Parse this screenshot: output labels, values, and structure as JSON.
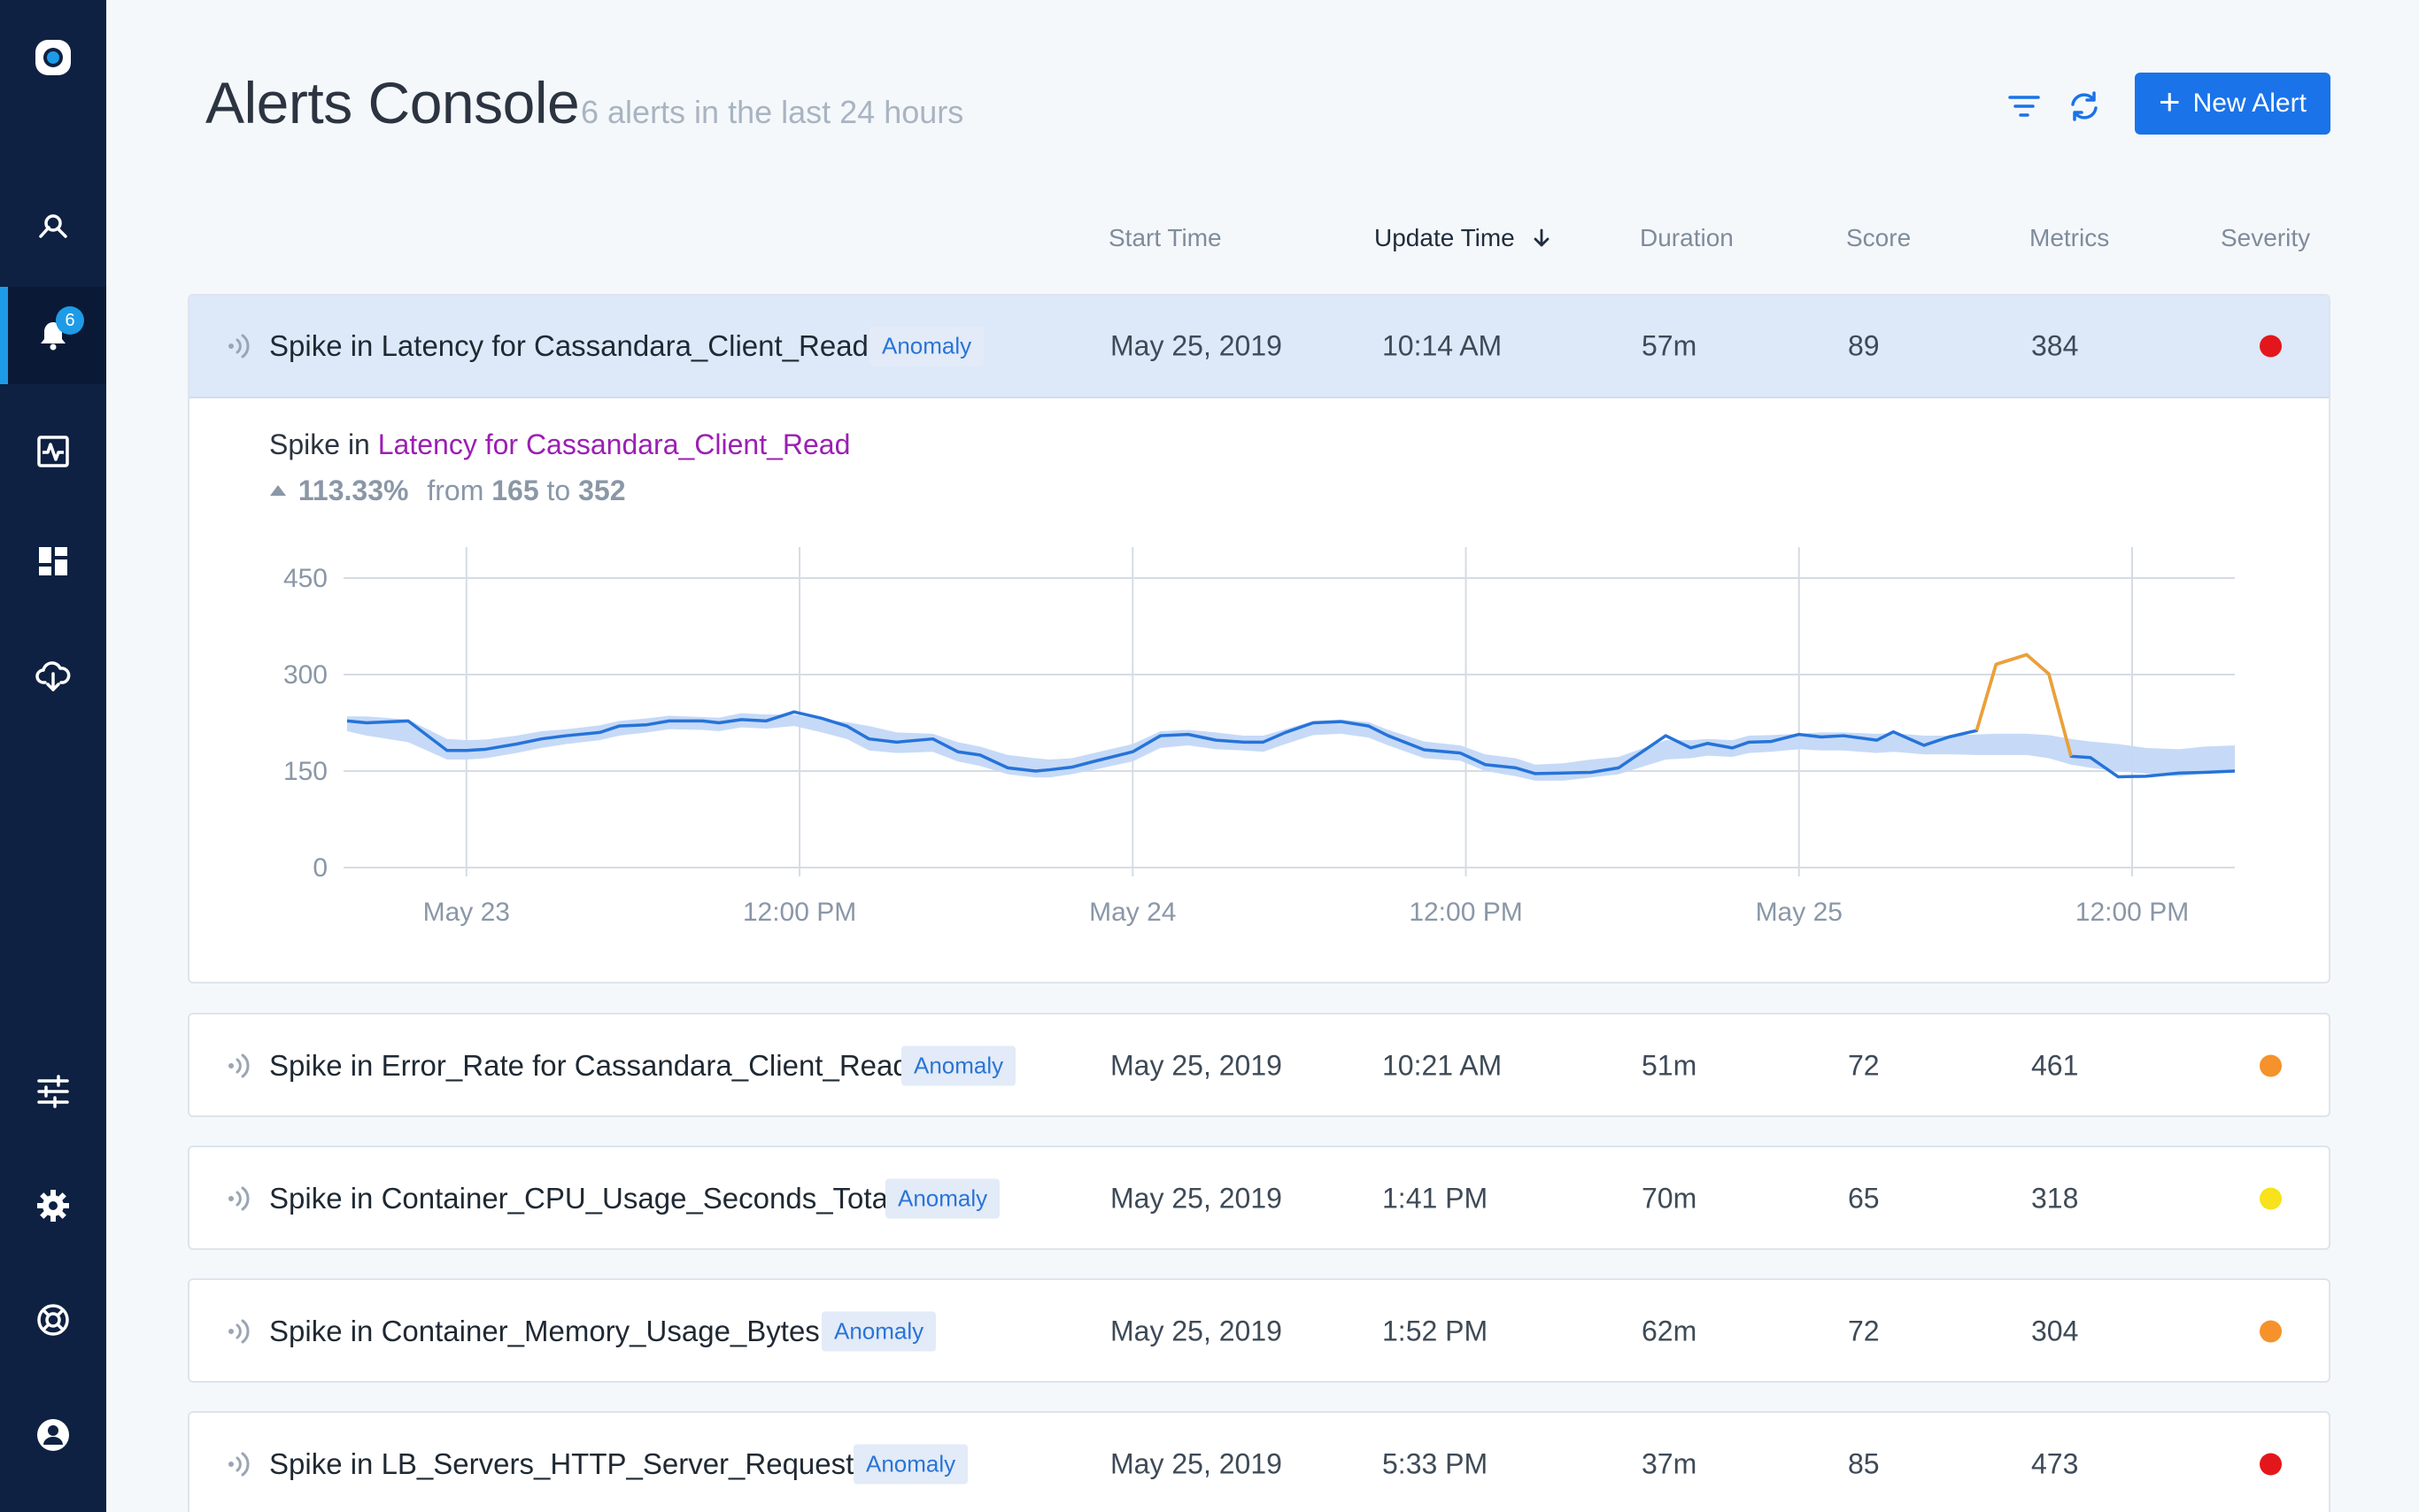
{
  "header": {
    "title": "Alerts Console",
    "subtitle": "6 alerts in the last 24 hours",
    "new_alert_label": "New Alert"
  },
  "sidebar": {
    "notification_count": "6",
    "items": [
      "logo-icon",
      "explore-icon",
      "alerts-bell-icon",
      "activity-icon",
      "dashboard-icon",
      "cloud-download-icon",
      "sliders-icon",
      "gear-icon",
      "support-icon",
      "user-icon"
    ]
  },
  "columns": {
    "start_time": "Start Time",
    "update_time": "Update Time",
    "duration": "Duration",
    "score": "Score",
    "metrics": "Metrics",
    "severity": "Severity"
  },
  "colors": {
    "accent": "#1a73e8",
    "red": "#e3171b",
    "orange": "#f5922b",
    "yellow": "#f7e21b"
  },
  "alerts": [
    {
      "title": "Spike in Latency for Cassandara_Client_Read",
      "tag": "Anomaly",
      "start": "May 25, 2019",
      "update": "10:14 AM",
      "duration": "57m",
      "score": "89",
      "metrics": "384",
      "severity": "#e3171b"
    },
    {
      "title": "Spike in Error_Rate for Cassandara_Client_Read",
      "tag": "Anomaly",
      "start": "May 25, 2019",
      "update": "10:21 AM",
      "duration": "51m",
      "score": "72",
      "metrics": "461",
      "severity": "#f5922b"
    },
    {
      "title": "Spike in Container_CPU_Usage_Seconds_Total",
      "tag": "Anomaly",
      "start": "May 25, 2019",
      "update": "1:41 PM",
      "duration": "70m",
      "score": "65",
      "metrics": "318",
      "severity": "#f7e21b"
    },
    {
      "title": "Spike in Container_Memory_Usage_Bytes",
      "tag": "Anomaly",
      "start": "May 25, 2019",
      "update": "1:52 PM",
      "duration": "62m",
      "score": "72",
      "metrics": "304",
      "severity": "#f5922b"
    },
    {
      "title": "Spike in LB_Servers_HTTP_Server_Requests",
      "tag": "Anomaly",
      "start": "May 25, 2019",
      "update": "5:33 PM",
      "duration": "37m",
      "score": "85",
      "metrics": "473",
      "severity": "#e3171b"
    }
  ],
  "detail": {
    "prefix": "Spike in",
    "metric": "Latency for Cassandara_Client_Read",
    "pct": "113.33%",
    "from_word": "from",
    "from_val": "165",
    "to_word": "to",
    "to_val": "352"
  },
  "chart_data": {
    "type": "line",
    "yticks": [
      "0",
      "150",
      "300",
      "450"
    ],
    "ylim": [
      0,
      490
    ],
    "xticks": [
      "May 23",
      "12:00 PM",
      "May 24",
      "12:00 PM",
      "May 25",
      "12:00 PM"
    ],
    "x_tick_hours": [
      0,
      12,
      24,
      36,
      48,
      60
    ],
    "xlim_hours": [
      -4.3,
      63.7
    ],
    "series": [
      {
        "role": "actual",
        "color": "#2673d9",
        "x_hours": [
          -4.3,
          -3.6,
          -2.1,
          -0.7,
          0.0,
          0.7,
          1.8,
          2.7,
          3.6,
          4.8,
          5.5,
          6.5,
          7.3,
          8.5,
          9.1,
          9.9,
          10.8,
          11.8,
          12.8,
          13.7,
          14.5,
          15.5,
          16.8,
          17.7,
          18.5,
          19.5,
          20.5,
          21.0,
          21.8,
          22.6,
          24.0,
          25.0,
          26.0,
          27.0,
          28.0,
          28.7,
          29.5,
          30.5,
          31.5,
          32.5,
          33.2,
          34.5,
          35.8,
          36.7,
          37.8,
          38.5,
          39.5,
          40.5,
          41.5,
          43.2,
          44.1,
          44.7,
          45.6,
          46.2,
          47.0,
          48.0,
          48.8,
          49.6,
          50.8,
          51.4,
          52.5,
          53.4,
          54.4,
          55.1,
          56.2,
          57.0,
          57.8,
          58.5,
          59.5,
          60.5,
          61.7,
          62.6,
          63.7
        ],
        "y": [
          228,
          225,
          228,
          182,
          182,
          184,
          192,
          200,
          205,
          210,
          220,
          222,
          228,
          228,
          225,
          230,
          228,
          242,
          232,
          220,
          200,
          195,
          200,
          180,
          175,
          155,
          150,
          152,
          156,
          165,
          180,
          205,
          207,
          198,
          195,
          195,
          210,
          225,
          227,
          220,
          205,
          183,
          178,
          160,
          155,
          146,
          147,
          148,
          155,
          205,
          186,
          193,
          186,
          195,
          196,
          207,
          203,
          205,
          198,
          211,
          190,
          203,
          213,
          316,
          331,
          301,
          173,
          171,
          141,
          142,
          147,
          148,
          150
        ]
      },
      {
        "role": "expected-band",
        "color": "#c3d8f7",
        "upper": [
          235,
          235,
          230,
          200,
          198,
          199,
          205,
          212,
          215,
          221,
          228,
          232,
          236,
          234,
          233,
          240,
          238,
          238,
          230,
          226,
          220,
          210,
          208,
          195,
          188,
          175,
          170,
          168,
          170,
          178,
          192,
          212,
          214,
          210,
          205,
          205,
          215,
          228,
          230,
          226,
          214,
          196,
          190,
          176,
          170,
          160,
          162,
          168,
          172,
          198,
          198,
          200,
          198,
          205,
          206,
          208,
          210,
          210,
          208,
          209,
          205,
          205,
          207,
          208,
          208,
          206,
          200,
          196,
          192,
          186,
          184,
          188,
          190
        ],
        "lower": [
          212,
          205,
          195,
          168,
          168,
          170,
          178,
          186,
          192,
          198,
          205,
          210,
          215,
          214,
          212,
          218,
          216,
          220,
          210,
          200,
          182,
          178,
          180,
          165,
          158,
          145,
          140,
          140,
          145,
          152,
          165,
          186,
          190,
          184,
          182,
          180,
          192,
          206,
          208,
          202,
          190,
          170,
          166,
          150,
          142,
          135,
          135,
          140,
          145,
          168,
          170,
          174,
          172,
          178,
          180,
          184,
          182,
          182,
          178,
          180,
          176,
          176,
          175,
          175,
          175,
          170,
          160,
          155,
          150,
          146,
          142,
          146,
          148
        ]
      },
      {
        "role": "anomaly",
        "color": "#f0a030",
        "x_hours": [
          54.4,
          55.1,
          56.2,
          57.0,
          57.8
        ],
        "y": [
          213,
          316,
          331,
          301,
          173
        ]
      }
    ]
  }
}
